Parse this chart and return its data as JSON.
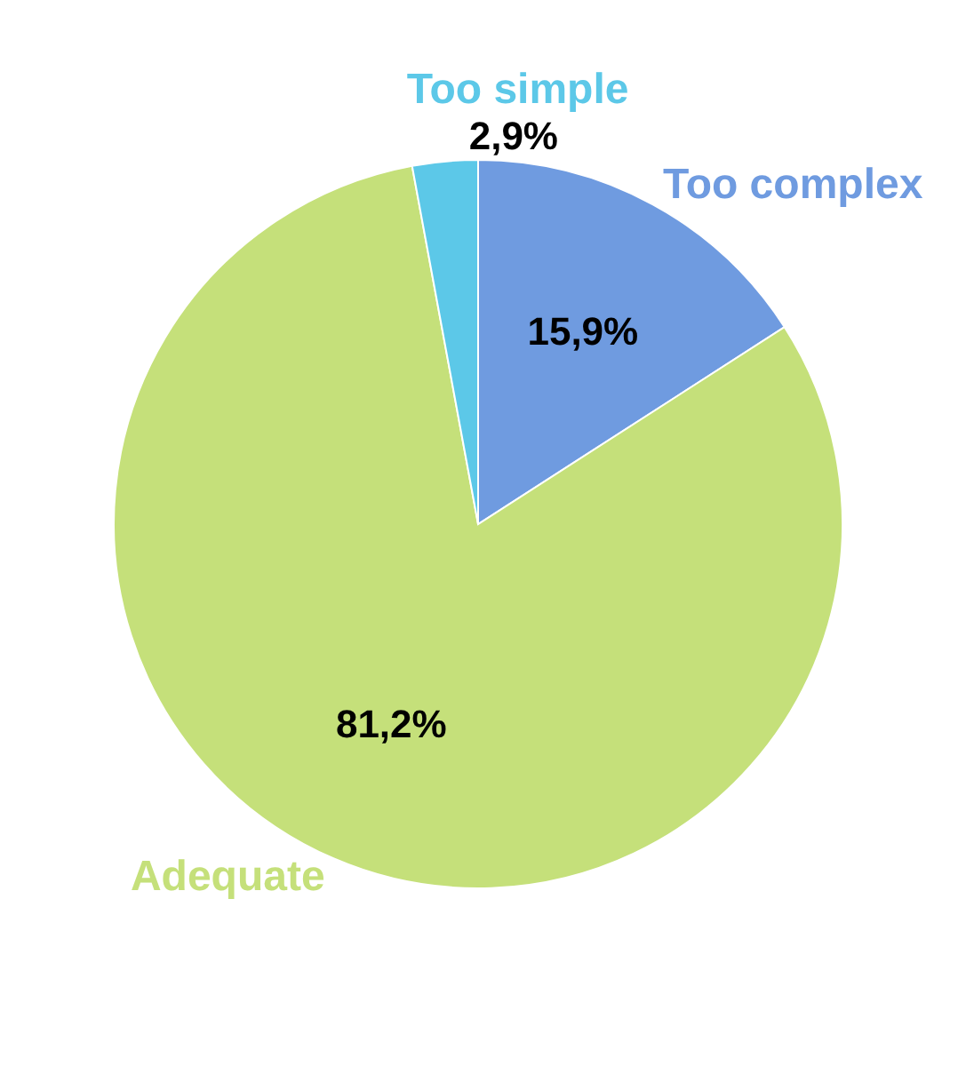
{
  "chart_data": {
    "type": "pie",
    "categories": [
      "Too complex",
      "Adequate",
      "Too simple"
    ],
    "values": [
      15.9,
      81.2,
      2.9
    ],
    "colors": [
      "#6f9be0",
      "#c5e07a",
      "#5cc8e8"
    ],
    "value_labels": [
      "15,9%",
      "81,2%",
      "2,9%"
    ]
  }
}
